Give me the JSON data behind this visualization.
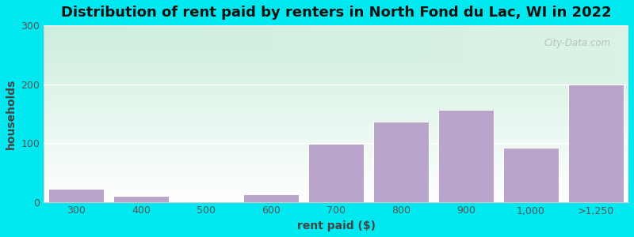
{
  "title": "Distribution of rent paid by renters in North Fond du Lac, WI in 2022",
  "xlabel": "rent paid ($)",
  "ylabel": "households",
  "categories": [
    "300",
    "400",
    "500",
    "600",
    "700",
    "800",
    "900",
    "1,000",
    ">1,250"
  ],
  "values": [
    22,
    10,
    0,
    13,
    99,
    137,
    157,
    92,
    199
  ],
  "bar_color": "#b9a4cc",
  "bar_edge_color": "#ffffff",
  "ylim": [
    0,
    300
  ],
  "yticks": [
    0,
    100,
    200,
    300
  ],
  "bg_color_top": "#cceedd",
  "bg_color_bottom": "#ffffff",
  "outer_bg": "#00e8f0",
  "title_fontsize": 13,
  "axis_label_fontsize": 10,
  "tick_fontsize": 9,
  "watermark": "City-Data.com"
}
